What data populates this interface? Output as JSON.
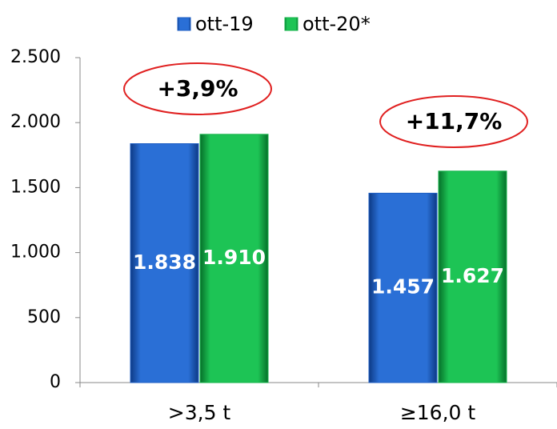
{
  "chart_data": {
    "type": "bar",
    "categories": [
      ">3,5 t",
      "≥16,0 t"
    ],
    "series": [
      {
        "name": "ott-19",
        "color": "#1f5fc4",
        "values": [
          1838,
          1457
        ],
        "value_labels": [
          "1.838",
          "1.457"
        ]
      },
      {
        "name": "ott-20*",
        "color": "#15b34a",
        "values": [
          1910,
          1627
        ],
        "value_labels": [
          "1.910",
          "1.627"
        ]
      }
    ],
    "ylim": [
      0,
      2500
    ],
    "yticks": [
      {
        "value": 0,
        "label": "0"
      },
      {
        "value": 500,
        "label": "500"
      },
      {
        "value": 1000,
        "label": "1.000"
      },
      {
        "value": 1500,
        "label": "1.500"
      },
      {
        "value": 2000,
        "label": "2.000"
      },
      {
        "value": 2500,
        "label": "2.500"
      }
    ],
    "annotations": [
      "+3,9%",
      "+11,7%"
    ],
    "legend": "top"
  }
}
